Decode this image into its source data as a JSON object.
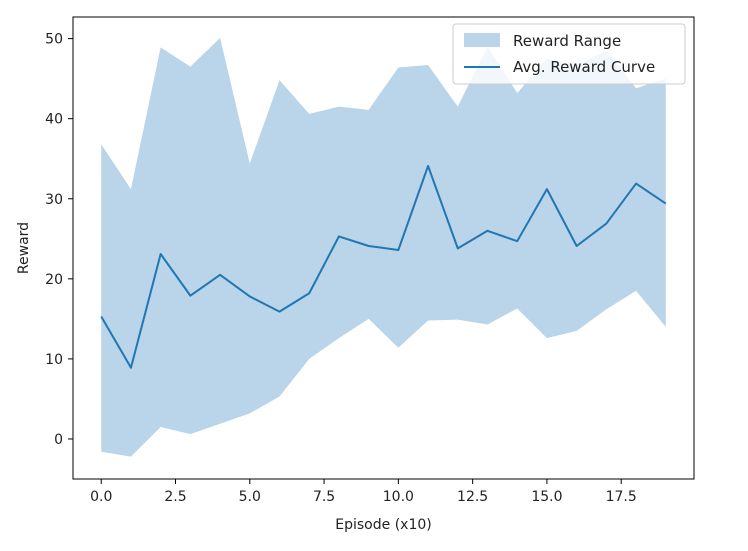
{
  "chart_data": {
    "type": "area",
    "title": "",
    "xlabel": "Episode (x10)",
    "ylabel": "Reward",
    "xlim": [
      -0.95,
      19.95
    ],
    "ylim": [
      -5,
      52.7
    ],
    "x_ticks": [
      0.0,
      2.5,
      5.0,
      7.5,
      10.0,
      12.5,
      15.0,
      17.5
    ],
    "x_tick_labels": [
      "0.0",
      "2.5",
      "5.0",
      "7.5",
      "10.0",
      "12.5",
      "15.0",
      "17.5"
    ],
    "y_ticks": [
      0,
      10,
      20,
      30,
      40,
      50
    ],
    "y_tick_labels": [
      "0",
      "10",
      "20",
      "30",
      "40",
      "50"
    ],
    "grid": false,
    "legend_position": "top-right",
    "x": [
      0,
      1,
      2,
      3,
      4,
      5,
      6,
      7,
      8,
      9,
      10,
      11,
      12,
      13,
      14,
      15,
      16,
      17,
      18,
      19
    ],
    "series": [
      {
        "name": "Reward Range",
        "kind": "band",
        "color": "#bad4e9",
        "lower": [
          -1.6,
          -2.2,
          1.5,
          0.6,
          1.9,
          3.2,
          5.3,
          10.0,
          12.6,
          15.0,
          11.4,
          14.8,
          14.9,
          14.3,
          16.3,
          12.6,
          13.5,
          16.2,
          18.5,
          14.0
        ],
        "upper": [
          36.8,
          31.2,
          48.9,
          46.5,
          50.1,
          34.4,
          44.8,
          40.6,
          41.5,
          41.1,
          46.4,
          46.7,
          41.5,
          49.0,
          43.2,
          47.5,
          46.7,
          48.5,
          43.8,
          45.0
        ]
      },
      {
        "name": "Avg. Reward Curve",
        "kind": "line",
        "color": "#1f77b4",
        "values": [
          15.3,
          8.9,
          23.1,
          17.9,
          20.5,
          17.8,
          15.9,
          18.2,
          25.3,
          24.1,
          23.6,
          34.1,
          23.8,
          26.0,
          24.7,
          31.2,
          24.1,
          26.9,
          31.9,
          29.4
        ]
      }
    ]
  }
}
